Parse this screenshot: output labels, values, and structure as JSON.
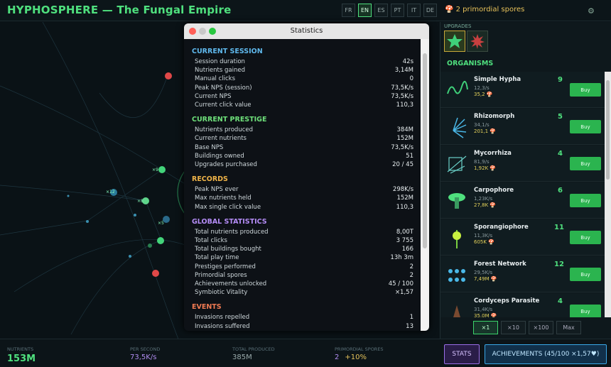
{
  "header": {
    "title": "HYPHOSPHERE — The Fungal Empire",
    "languages": [
      "FR",
      "EN",
      "ES",
      "PT",
      "IT",
      "DE"
    ],
    "spores": "2 primordial spores"
  },
  "map_labels": [
    "×9",
    "×12",
    "×8",
    "×5"
  ],
  "stats_window": {
    "title": "Statistics",
    "sections": [
      {
        "title": "CURRENT SESSION",
        "rows": [
          [
            "Session duration",
            "42s"
          ],
          [
            "Nutrients gained",
            "3,14M"
          ],
          [
            "Manual clicks",
            "0"
          ],
          [
            "Peak NPS (session)",
            "73,5K/s"
          ],
          [
            "Current NPS",
            "73,5K/s"
          ],
          [
            "Current click value",
            "110,3"
          ]
        ]
      },
      {
        "title": "CURRENT PRESTIGE",
        "rows": [
          [
            "Nutrients produced",
            "384M"
          ],
          [
            "Current nutrients",
            "152M"
          ],
          [
            "Base NPS",
            "73,5K/s"
          ],
          [
            "Buildings owned",
            "51"
          ],
          [
            "Upgrades purchased",
            "20 / 45"
          ]
        ]
      },
      {
        "title": "RECORDS",
        "rows": [
          [
            "Peak NPS ever",
            "298K/s"
          ],
          [
            "Max nutrients held",
            "152M"
          ],
          [
            "Max single click value",
            "110,3"
          ]
        ]
      },
      {
        "title": "GLOBAL STATISTICS",
        "rows": [
          [
            "Total nutrients produced",
            "8,00T"
          ],
          [
            "Total clicks",
            "3 755"
          ],
          [
            "Total buildings bought",
            "166"
          ],
          [
            "Total play time",
            "13h 3m"
          ],
          [
            "Prestiges performed",
            "2"
          ],
          [
            "Primordial spores",
            "2"
          ],
          [
            "Achievements unlocked",
            "45 / 100"
          ],
          [
            "Symbiotic Vitality",
            "×1,57"
          ]
        ]
      },
      {
        "title": "EVENTS",
        "rows": [
          [
            "Invasions repelled",
            "1"
          ],
          [
            "Invasions suffered",
            "13"
          ]
        ]
      }
    ]
  },
  "upgrades_title": "UPGRADES",
  "organisms": {
    "title": "ORGANISMS",
    "items": [
      {
        "name": "Simple Hypha",
        "rate": "12,3/s",
        "cost": "35,2",
        "count": "9",
        "button": "Buy"
      },
      {
        "name": "Rhizomorph",
        "rate": "34,1/s",
        "cost": "201,1",
        "count": "5",
        "button": "Buy"
      },
      {
        "name": "Mycorrhiza",
        "rate": "81,9/s",
        "cost": "1,92K",
        "count": "4",
        "button": "Buy"
      },
      {
        "name": "Carpophore",
        "rate": "1,23K/s",
        "cost": "27,8K",
        "count": "6",
        "button": "Buy"
      },
      {
        "name": "Sporangiophore",
        "rate": "11,3K/s",
        "cost": "605K",
        "count": "11",
        "button": "Buy"
      },
      {
        "name": "Forest Network",
        "rate": "29,5K/s",
        "cost": "7,49M",
        "count": "12",
        "button": "Buy"
      },
      {
        "name": "Cordyceps Parasite",
        "rate": "31,4K/s",
        "cost": "35,0M",
        "count": "4",
        "button": "Buy"
      }
    ],
    "multipliers": [
      "×1",
      "×10",
      "×100",
      "Max"
    ]
  },
  "footer": {
    "stats": [
      {
        "label": "NUTRIENTS",
        "value": "153M"
      },
      {
        "label": "PER SECOND",
        "value": "73,5K/s"
      },
      {
        "label": "TOTAL PRODUCED",
        "value": "385M"
      },
      {
        "label": "PRIMORDIAL SPORES",
        "value": "2",
        "bonus": "+10%"
      }
    ],
    "stats_button": "STATS",
    "achievements_button": "ACHIEVEMENTS (45/100 ×1,57♥)"
  }
}
